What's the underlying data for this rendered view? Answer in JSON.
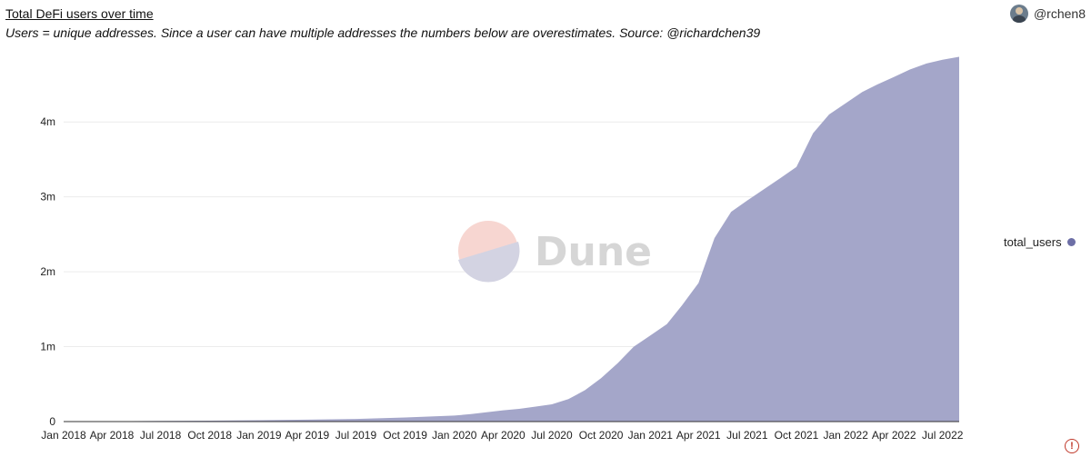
{
  "header": {
    "title": "Total DeFi users over time",
    "subtitle": "Users = unique addresses. Since a user can have multiple addresses the numbers below are overestimates. Source: @richardchen39",
    "author": "@rchen8"
  },
  "watermark": {
    "text": "Dune"
  },
  "icons": {
    "avatar": "user-avatar-icon",
    "warning": "error-circle-icon"
  },
  "chart_data": {
    "type": "area",
    "title": "Total DeFi users over time",
    "xlabel": "",
    "ylabel": "",
    "grid": true,
    "legend_position": "right",
    "x_ticks": [
      "Jan 2018",
      "Apr 2018",
      "Jul 2018",
      "Oct 2018",
      "Jan 2019",
      "Apr 2019",
      "Jul 2019",
      "Oct 2019",
      "Jan 2020",
      "Apr 2020",
      "Jul 2020",
      "Oct 2020",
      "Jan 2021",
      "Apr 2021",
      "Jul 2021",
      "Oct 2021",
      "Jan 2022",
      "Apr 2022",
      "Jul 2022"
    ],
    "y_ticks": [
      "0",
      "1m",
      "2m",
      "3m",
      "4m"
    ],
    "y_tick_values": [
      0,
      1000000,
      2000000,
      3000000,
      4000000
    ],
    "ylim": [
      0,
      4900000
    ],
    "series": [
      {
        "name": "total_users",
        "color": "#a4a6c9",
        "legend_color": "#6d6fa6",
        "x": [
          "2018-01-01",
          "2018-04-01",
          "2018-07-01",
          "2018-10-01",
          "2019-01-01",
          "2019-04-01",
          "2019-07-01",
          "2019-10-01",
          "2020-01-01",
          "2020-02-01",
          "2020-03-01",
          "2020-04-01",
          "2020-05-01",
          "2020-06-01",
          "2020-07-01",
          "2020-08-01",
          "2020-09-01",
          "2020-10-01",
          "2020-11-01",
          "2020-12-01",
          "2021-01-01",
          "2021-02-01",
          "2021-03-01",
          "2021-04-01",
          "2021-05-01",
          "2021-06-01",
          "2021-07-01",
          "2021-08-01",
          "2021-09-01",
          "2021-10-01",
          "2021-11-01",
          "2021-12-01",
          "2022-01-01",
          "2022-02-01",
          "2022-03-01",
          "2022-04-01",
          "2022-05-01",
          "2022-06-01",
          "2022-07-01",
          "2022-08-01"
        ],
        "values": [
          2000,
          5000,
          8000,
          12000,
          18000,
          25000,
          35000,
          55000,
          80000,
          100000,
          125000,
          150000,
          170000,
          200000,
          230000,
          300000,
          420000,
          580000,
          780000,
          1000000,
          1150000,
          1300000,
          1550000,
          1850000,
          2450000,
          2800000,
          2950000,
          3100000,
          3250000,
          3400000,
          3850000,
          4100000,
          4250000,
          4400000,
          4500000,
          4600000,
          4700000,
          4780000,
          4830000,
          4870000
        ]
      }
    ]
  }
}
